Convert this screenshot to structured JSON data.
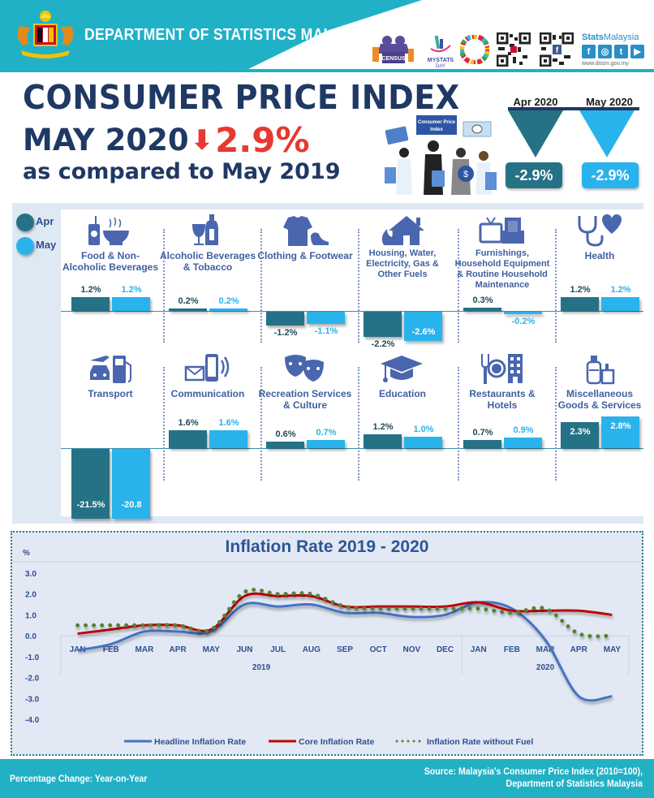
{
  "header": {
    "department": "DEPARTMENT OF STATISTICS MALAYSIA",
    "brand_name_bold": "Stats",
    "brand_name_light": "Malaysia",
    "website": "www.dosm.gov.my",
    "social": [
      "f",
      "◎",
      "t",
      "▶"
    ],
    "logos": [
      "census-logo",
      "mystats-day-logo",
      "sdg-logo",
      "qr-code",
      "facebook-qr-code"
    ],
    "mystats_text": "MYSTATS",
    "mystats_sub": "DAY",
    "census_text": "CENSUS",
    "colors": {
      "teal": "#20b1c7",
      "navy": "#1f3864"
    }
  },
  "headline": {
    "title": "CONSUMER PRICE INDEX",
    "month": "MAY 2020",
    "arrow": "⬇",
    "change": "2.9%",
    "comparison": "as compared to May 2019",
    "illustration_sign": "Consumer Price Index",
    "colors": {
      "title": "#1f3864",
      "decrease": "#e8382f"
    }
  },
  "summary": {
    "apr_label": "Apr 2020",
    "may_label": "May 2020",
    "apr_value": "-2.9%",
    "may_value": "-2.9%",
    "colors": {
      "apr": "#257286",
      "may": "#29b3ec"
    }
  },
  "groups": {
    "legend": [
      {
        "label": "Apr",
        "color": "#257286"
      },
      {
        "label": "May",
        "color": "#29b3ec"
      }
    ],
    "items": [
      {
        "name": "Food & Non-Alcoholic Beverages",
        "icon": "food-drink-icon",
        "apr": 1.2,
        "may": 1.2,
        "apr_label": "1.2%",
        "may_label": "1.2%"
      },
      {
        "name": "Alcoholic Beverages & Tobacco",
        "icon": "wine-bottle-icon",
        "apr": 0.2,
        "may": 0.2,
        "apr_label": "0.2%",
        "may_label": "0.2%"
      },
      {
        "name": "Clothing & Footwear",
        "icon": "shirt-shoe-icon",
        "apr": -1.2,
        "may": -1.1,
        "apr_label": "-1.2%",
        "may_label": "-1.1%"
      },
      {
        "name": "Housing, Water, Electricity, Gas & Other Fuels",
        "icon": "house-flame-icon",
        "apr": -2.2,
        "may": -2.6,
        "apr_label": "-2.2%",
        "may_label": "-2.6%"
      },
      {
        "name": "Furnishings, Household Equipment & Routine Household Maintenance",
        "icon": "tv-armchair-icon",
        "apr": 0.3,
        "may": -0.2,
        "apr_label": "0.3%",
        "may_label": "-0.2%"
      },
      {
        "name": "Health",
        "icon": "stethoscope-heart-icon",
        "apr": 1.2,
        "may": 1.2,
        "apr_label": "1.2%",
        "may_label": "1.2%"
      },
      {
        "name": "Transport",
        "icon": "car-plane-fuel-icon",
        "apr": -21.5,
        "may": -20.8,
        "apr_label": "-21.5%",
        "may_label": "-20.8"
      },
      {
        "name": "Communication",
        "icon": "mail-phone-icon",
        "apr": 1.6,
        "may": 1.6,
        "apr_label": "1.6%",
        "may_label": "1.6%"
      },
      {
        "name": "Recreation Services & Culture",
        "icon": "theatre-masks-icon",
        "apr": 0.6,
        "may": 0.7,
        "apr_label": "0.6%",
        "may_label": "0.7%"
      },
      {
        "name": "Education",
        "icon": "graduation-cap-icon",
        "apr": 1.2,
        "may": 1.0,
        "apr_label": "1.2%",
        "may_label": "1.0%"
      },
      {
        "name": "Restaurants & Hotels",
        "icon": "dining-hotel-icon",
        "apr": 0.7,
        "may": 0.9,
        "apr_label": "0.7%",
        "may_label": "0.9%"
      },
      {
        "name": "Miscellaneous Goods & Services",
        "icon": "toiletries-icon",
        "apr": 2.3,
        "may": 2.8,
        "apr_label": "2.3%",
        "may_label": "2.8%"
      }
    ]
  },
  "chart_data": [
    {
      "type": "bar",
      "title": "Percentage change by main group, Apr and May 2020",
      "categories": [
        "Food & Non-Alcoholic Beverages",
        "Alcoholic Beverages & Tobacco",
        "Clothing & Footwear",
        "Housing, Water, Electricity, Gas & Other Fuels",
        "Furnishings, Household Equipment & Routine Household Maintenance",
        "Health",
        "Transport",
        "Communication",
        "Recreation Services & Culture",
        "Education",
        "Restaurants & Hotels",
        "Miscellaneous Goods & Services"
      ],
      "series": [
        {
          "name": "Apr",
          "color": "#257286",
          "values": [
            1.2,
            0.2,
            -1.2,
            -2.2,
            0.3,
            1.2,
            -21.5,
            1.6,
            0.6,
            1.2,
            0.7,
            2.3
          ]
        },
        {
          "name": "May",
          "color": "#29b3ec",
          "values": [
            1.2,
            0.2,
            -1.1,
            -2.6,
            -0.2,
            1.2,
            -20.8,
            1.6,
            0.7,
            1.0,
            0.9,
            2.8
          ]
        }
      ],
      "legend": "top-left"
    },
    {
      "type": "line",
      "title": "Inflation Rate 2019 - 2020",
      "ylabel": "%",
      "ylim": [
        -4.0,
        3.0
      ],
      "yticks": [
        "3.0",
        "2.0",
        "1.0",
        "0.0",
        "-1.0",
        "-2.0",
        "-3.0",
        "-4.0"
      ],
      "yticks_values": [
        3,
        2,
        1,
        0,
        -1,
        -2,
        -3,
        -4
      ],
      "x": [
        "JAN",
        "FEB",
        "MAR",
        "APR",
        "MAY",
        "JUN",
        "JUL",
        "AUG",
        "SEP",
        "OCT",
        "NOV",
        "DEC",
        "JAN",
        "FEB",
        "MAR",
        "APR",
        "MAY"
      ],
      "year_groups": [
        {
          "label": "2019",
          "span": 12
        },
        {
          "label": "2020",
          "span": 5
        }
      ],
      "series": [
        {
          "name": "Headline Inflation Rate",
          "color": "#4472c4",
          "style": "solid",
          "values": [
            -0.7,
            -0.4,
            0.2,
            0.2,
            0.2,
            1.5,
            1.4,
            1.5,
            1.1,
            1.1,
            0.9,
            1.0,
            1.6,
            1.3,
            -0.2,
            -2.9,
            -2.9
          ]
        },
        {
          "name": "Core Inflation Rate",
          "color": "#c00000",
          "style": "solid",
          "values": [
            0.1,
            0.3,
            0.5,
            0.5,
            0.3,
            1.9,
            1.9,
            1.9,
            1.4,
            1.4,
            1.4,
            1.4,
            1.6,
            1.2,
            1.2,
            1.2,
            1.0
          ]
        },
        {
          "name": "Inflation Rate without Fuel",
          "color": "#548235",
          "style": "dotted",
          "values": [
            0.5,
            0.5,
            0.5,
            0.5,
            0.3,
            2.1,
            2.0,
            2.0,
            1.4,
            1.3,
            1.3,
            1.3,
            1.3,
            1.1,
            1.3,
            0.1,
            0.0
          ]
        }
      ],
      "legend": "bottom",
      "grid": false
    }
  ],
  "line_chart": {
    "title": "Inflation Rate 2019 - 2020",
    "unit": "%",
    "legend": [
      "Headline Inflation Rate",
      "Core Inflation Rate",
      "Inflation Rate without Fuel"
    ]
  },
  "footer": {
    "left": "Percentage Change: Year-on-Year",
    "right_line1": "Source: Malaysia's Consumer Price Index (2010=100),",
    "right_line2": "Department of  Statistics Malaysia"
  }
}
